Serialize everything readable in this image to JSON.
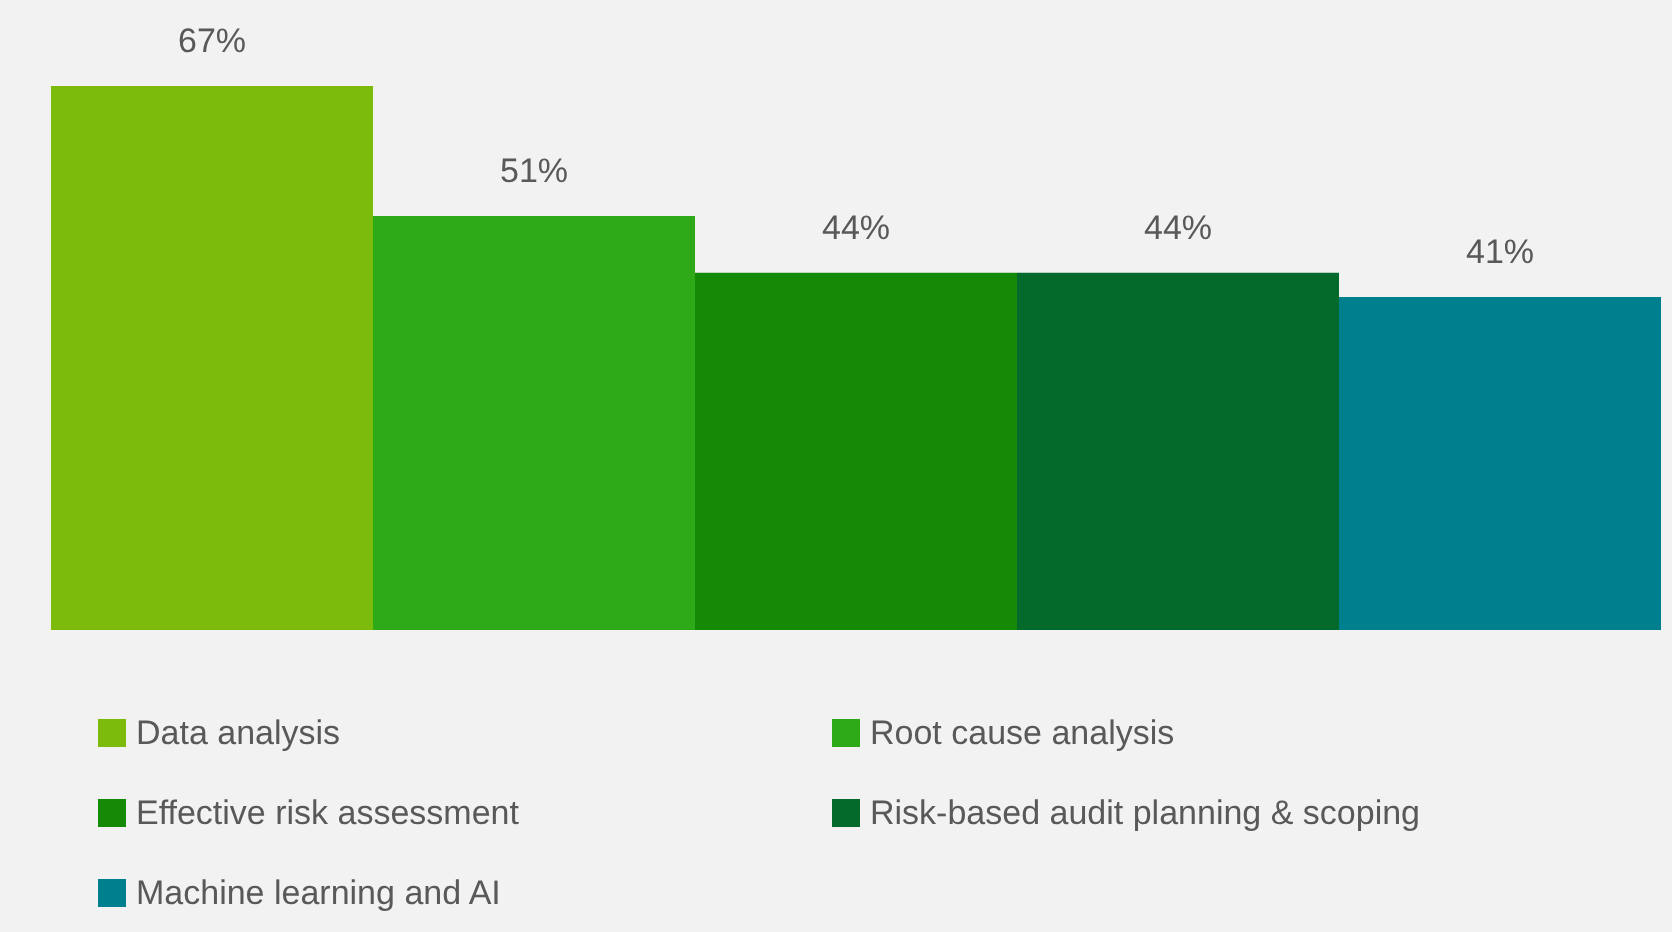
{
  "chart_data": {
    "type": "bar",
    "categories": [
      null
    ],
    "legend": "bottom",
    "series": [
      {
        "name": "Data analysis",
        "color": "#7cbb0c",
        "values": [
          67
        ],
        "value_labels": [
          "67%"
        ]
      },
      {
        "name": "Root cause analysis",
        "color": "#2eaa18",
        "values": [
          51
        ],
        "value_labels": [
          "51%"
        ]
      },
      {
        "name": "Effective risk assessment",
        "color": "#158a06",
        "values": [
          44
        ],
        "value_labels": [
          "44%"
        ]
      },
      {
        "name": "Risk-based audit planning & scoping",
        "color": "#036a2c",
        "values": [
          44
        ],
        "value_labels": [
          "44%"
        ]
      },
      {
        "name": "Machine learning and AI",
        "color": "#00808f",
        "values": [
          41
        ],
        "value_labels": [
          "41%"
        ]
      }
    ]
  }
}
